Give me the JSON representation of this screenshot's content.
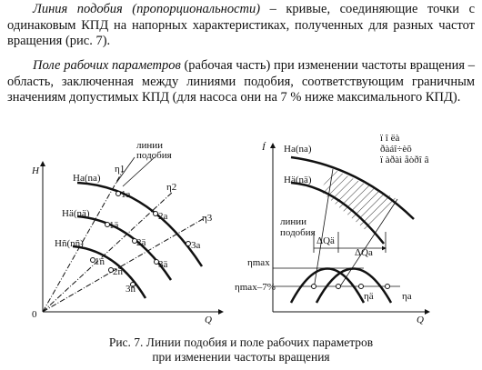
{
  "paragraphs": [
    {
      "term": "Линия подобия (пропорциональности)",
      "text": " – кривые, соединяющие точки с одинаковым КПД на напорных характеристиках, полученных для разных частот вращения (рис. 7)."
    },
    {
      "term": "Поле рабочих параметров",
      "text": " (рабочая часть) при изменении частоты вращения – область, заключенная между линиями подобия, соответствующим граничным значениям допустимых КПД (для насоса они на 7 % ниже максимального КПД)."
    }
  ],
  "figure": {
    "left": {
      "y_axis": "H",
      "x_axis": "Q",
      "origin": "0",
      "similarity_label": [
        "линии",
        "подобия"
      ],
      "eta": [
        "η1",
        "η2",
        "η3"
      ],
      "curves": [
        "Hа(nа)",
        "Hä(nä)",
        "Hñ(nñ)"
      ],
      "points": [
        "1а",
        "2а",
        "3а",
        "1ä",
        "2ä",
        "3ä",
        "1ñ",
        "2ñ",
        "3ñ"
      ]
    },
    "right": {
      "y_axis": "Í",
      "x_axis": "Q",
      "curves": [
        "Hа(nа)",
        "Hä(nä)"
      ],
      "field_label": [
        "ï î ëà",
        "ðàáî÷èõ",
        "ï àðàì åòðî â"
      ],
      "similarity_label": [
        "линии",
        "подобия"
      ],
      "delta": [
        "ΔQä",
        "ΔQа"
      ],
      "eta_levels": [
        "ηmax",
        "ηmax–7%"
      ],
      "eta_curves": [
        "ηä",
        "ηа"
      ]
    }
  },
  "caption": [
    "Рис. 7. Линии подобия и поле рабочих параметров",
    "при изменении частоты вращения"
  ]
}
